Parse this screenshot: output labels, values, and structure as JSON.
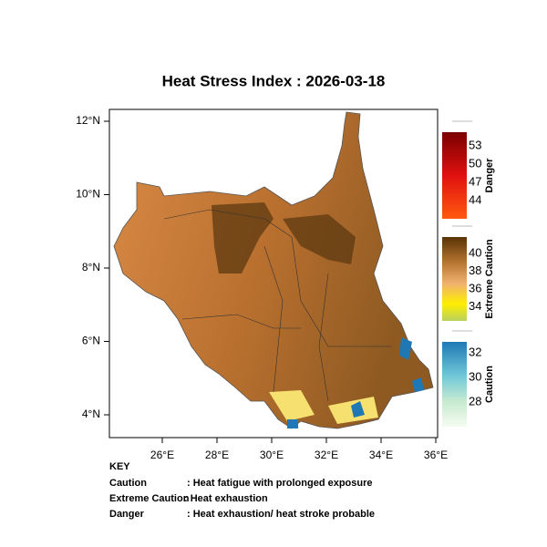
{
  "title": "Heat Stress Index : 2026-03-18",
  "x_ticks": [
    "26°E",
    "28°E",
    "30°E",
    "32°E",
    "34°E",
    "36°E"
  ],
  "y_ticks": [
    "12°N",
    "10°N",
    "8°N",
    "6°N",
    "4°N"
  ],
  "legends": [
    {
      "name": "Danger",
      "labels": [
        53,
        50,
        47,
        44
      ]
    },
    {
      "name": "Extreme Caution",
      "labels": [
        40,
        38,
        36,
        34
      ]
    },
    {
      "name": "Caution",
      "labels": [
        32,
        30,
        28
      ]
    }
  ],
  "key": {
    "title": "KEY",
    "rows": [
      [
        "Caution",
        ": Heat fatigue with prolonged exposure"
      ],
      [
        "Extreme Caution",
        ": Heat exhaustion"
      ],
      [
        "Danger",
        ": Heat exhaustion/ heat stroke probable"
      ]
    ]
  }
}
